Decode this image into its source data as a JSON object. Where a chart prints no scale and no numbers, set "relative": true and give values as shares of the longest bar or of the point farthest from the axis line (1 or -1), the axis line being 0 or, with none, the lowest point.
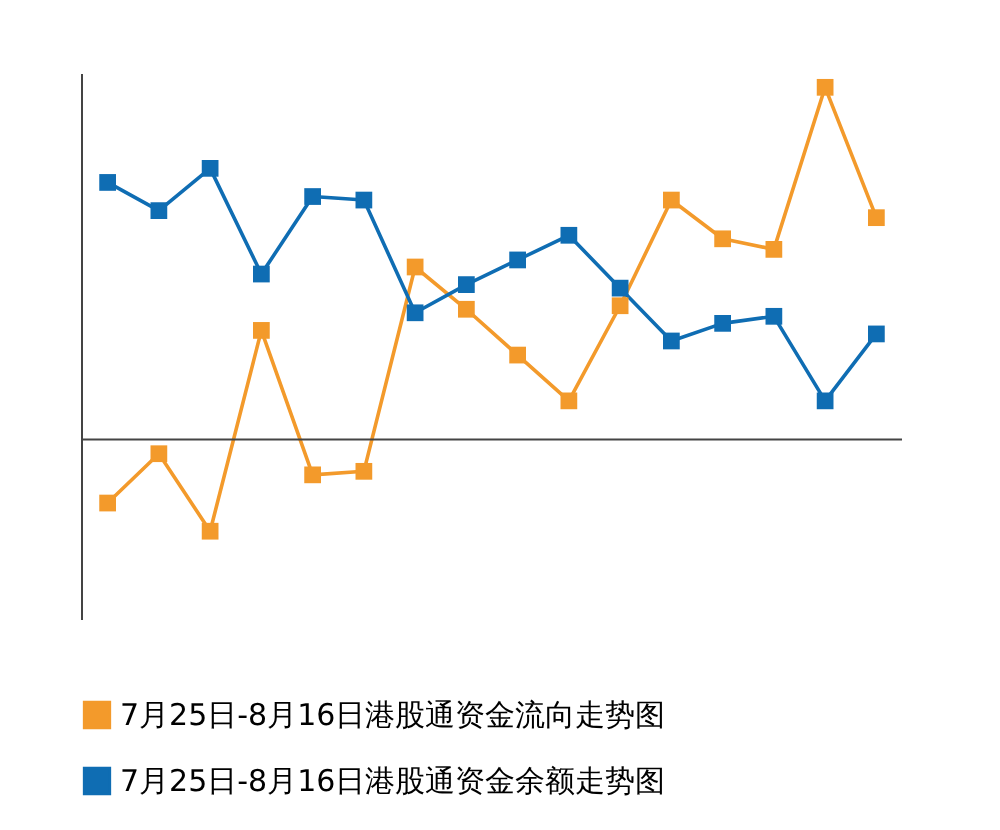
{
  "chart_data": {
    "type": "line",
    "relative": true,
    "marker": "square",
    "line_style": "solid",
    "legend": "bottom",
    "grid": false,
    "categories": [
      null,
      null,
      null,
      null,
      null,
      null,
      null,
      null,
      null,
      null,
      null,
      null,
      null,
      null,
      null,
      null
    ],
    "series": [
      {
        "name": "7月25日-8月16日港股通资金流向走势图",
        "color": "#f39a2b",
        "values": [
          -0.18,
          -0.04,
          -0.26,
          0.31,
          -0.1,
          -0.09,
          0.49,
          0.37,
          0.24,
          0.11,
          0.38,
          0.68,
          0.57,
          0.54,
          1,
          0.63
        ]
      },
      {
        "name": "7月25日-8月16日港股通资金余额走势图",
        "color": "#0f6db3",
        "values": [
          0.73,
          0.65,
          0.77,
          0.47,
          0.69,
          0.68,
          0.36,
          0.44,
          0.51,
          0.58,
          0.43,
          0.28,
          0.33,
          0.35,
          0.11,
          0.3
        ]
      }
    ]
  }
}
